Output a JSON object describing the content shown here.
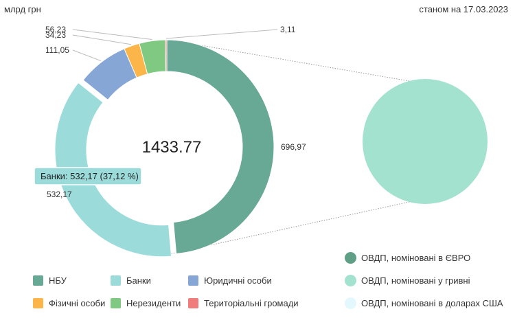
{
  "header": {
    "unit": "млрд грн",
    "as_of": "станом на 17.03.2023"
  },
  "chart_data": [
    {
      "type": "pie",
      "donut": true,
      "total_label": "1433.77",
      "categories": [
        "НБУ",
        "Банки",
        "Юридичні особи",
        "Фізичні особи",
        "Нерезиденти",
        "Територіальні громади"
      ],
      "values": [
        696.97,
        532.17,
        111.05,
        34.23,
        56.23,
        3.11
      ],
      "value_labels": [
        "696,97",
        "532,17",
        "111,05",
        "34,23",
        "56,23",
        "3,11"
      ],
      "colors": [
        "#68a995",
        "#9bdcdb",
        "#86a6d6",
        "#fbb548",
        "#80c982",
        "#f07c7b"
      ],
      "exploded": "Банки",
      "tooltip": "Банки: 532,17 (37,12 %)",
      "legend_position": "bottom-left"
    },
    {
      "type": "pie",
      "categories": [
        "ОВДП, номіновані в ЄВРО",
        "ОВДП, номіновані у гривні",
        "ОВДП, номіновані в доларах США"
      ],
      "values": [
        0,
        100,
        0
      ],
      "colors": [
        "#5f9f86",
        "#a3e2cf",
        "#e2f8fd"
      ],
      "legend_position": "bottom-right"
    }
  ]
}
